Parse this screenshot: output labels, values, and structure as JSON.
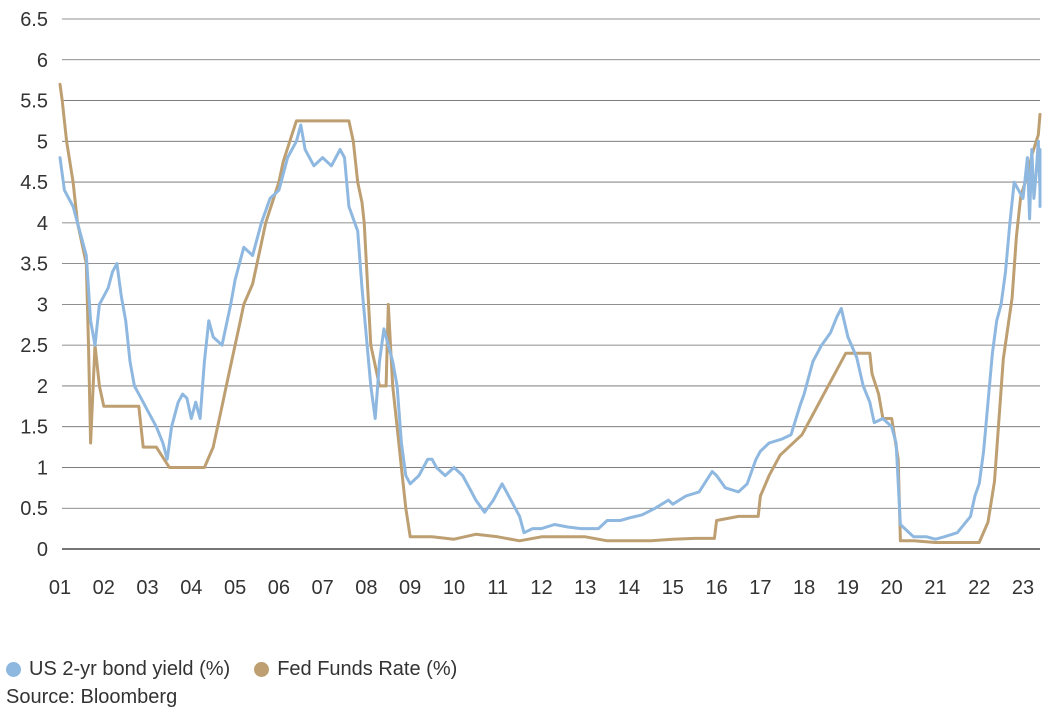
{
  "chart_data": {
    "type": "line",
    "title": "",
    "xlabel": "",
    "ylabel": "",
    "x_tick_labels": [
      "01",
      "02",
      "03",
      "04",
      "05",
      "06",
      "07",
      "08",
      "09",
      "10",
      "11",
      "12",
      "13",
      "14",
      "15",
      "16",
      "17",
      "18",
      "19",
      "20",
      "21",
      "22",
      "23"
    ],
    "y_tick_labels": [
      "0",
      "0.5",
      "1",
      "1.5",
      "2",
      "2.5",
      "3",
      "3.5",
      "4",
      "4.5",
      "5",
      "5.5",
      "6",
      "6.5"
    ],
    "xlim": [
      2001.0,
      2023.4
    ],
    "ylim": [
      0,
      6.5
    ],
    "grid": "horizontal",
    "legend_position": "bottom-left",
    "series": [
      {
        "name": "US 2-yr bond yield (%)",
        "color": "#8fb8e0",
        "points": [
          [
            2001.0,
            4.8
          ],
          [
            2001.1,
            4.4
          ],
          [
            2001.3,
            4.2
          ],
          [
            2001.5,
            3.8
          ],
          [
            2001.6,
            3.6
          ],
          [
            2001.7,
            2.8
          ],
          [
            2001.8,
            2.5
          ],
          [
            2001.9,
            3.0
          ],
          [
            2002.0,
            3.1
          ],
          [
            2002.1,
            3.2
          ],
          [
            2002.2,
            3.4
          ],
          [
            2002.3,
            3.5
          ],
          [
            2002.4,
            3.1
          ],
          [
            2002.5,
            2.8
          ],
          [
            2002.6,
            2.3
          ],
          [
            2002.7,
            2.0
          ],
          [
            2002.8,
            1.9
          ],
          [
            2002.9,
            1.8
          ],
          [
            2003.0,
            1.7
          ],
          [
            2003.2,
            1.5
          ],
          [
            2003.35,
            1.3
          ],
          [
            2003.45,
            1.1
          ],
          [
            2003.55,
            1.5
          ],
          [
            2003.7,
            1.8
          ],
          [
            2003.8,
            1.9
          ],
          [
            2003.9,
            1.85
          ],
          [
            2004.0,
            1.6
          ],
          [
            2004.1,
            1.8
          ],
          [
            2004.2,
            1.6
          ],
          [
            2004.3,
            2.3
          ],
          [
            2004.4,
            2.8
          ],
          [
            2004.5,
            2.6
          ],
          [
            2004.7,
            2.5
          ],
          [
            2004.9,
            3.0
          ],
          [
            2005.0,
            3.3
          ],
          [
            2005.2,
            3.7
          ],
          [
            2005.4,
            3.6
          ],
          [
            2005.6,
            4.0
          ],
          [
            2005.8,
            4.3
          ],
          [
            2006.0,
            4.4
          ],
          [
            2006.2,
            4.8
          ],
          [
            2006.4,
            5.0
          ],
          [
            2006.5,
            5.2
          ],
          [
            2006.6,
            4.9
          ],
          [
            2006.8,
            4.7
          ],
          [
            2007.0,
            4.8
          ],
          [
            2007.2,
            4.7
          ],
          [
            2007.4,
            4.9
          ],
          [
            2007.5,
            4.8
          ],
          [
            2007.6,
            4.2
          ],
          [
            2007.8,
            3.9
          ],
          [
            2007.9,
            3.2
          ],
          [
            2008.0,
            2.6
          ],
          [
            2008.1,
            2.0
          ],
          [
            2008.2,
            1.6
          ],
          [
            2008.3,
            2.3
          ],
          [
            2008.4,
            2.7
          ],
          [
            2008.5,
            2.5
          ],
          [
            2008.6,
            2.3
          ],
          [
            2008.7,
            2.0
          ],
          [
            2008.8,
            1.3
          ],
          [
            2008.9,
            0.9
          ],
          [
            2009.0,
            0.8
          ],
          [
            2009.2,
            0.9
          ],
          [
            2009.4,
            1.1
          ],
          [
            2009.5,
            1.1
          ],
          [
            2009.6,
            1.0
          ],
          [
            2009.8,
            0.9
          ],
          [
            2010.0,
            1.0
          ],
          [
            2010.2,
            0.9
          ],
          [
            2010.4,
            0.7
          ],
          [
            2010.5,
            0.6
          ],
          [
            2010.7,
            0.45
          ],
          [
            2010.9,
            0.6
          ],
          [
            2011.0,
            0.7
          ],
          [
            2011.1,
            0.8
          ],
          [
            2011.2,
            0.7
          ],
          [
            2011.4,
            0.5
          ],
          [
            2011.5,
            0.4
          ],
          [
            2011.6,
            0.2
          ],
          [
            2011.8,
            0.25
          ],
          [
            2012.0,
            0.25
          ],
          [
            2012.3,
            0.3
          ],
          [
            2012.6,
            0.27
          ],
          [
            2012.9,
            0.25
          ],
          [
            2013.0,
            0.25
          ],
          [
            2013.3,
            0.25
          ],
          [
            2013.5,
            0.35
          ],
          [
            2013.8,
            0.35
          ],
          [
            2014.0,
            0.38
          ],
          [
            2014.3,
            0.42
          ],
          [
            2014.6,
            0.5
          ],
          [
            2014.9,
            0.6
          ],
          [
            2015.0,
            0.55
          ],
          [
            2015.3,
            0.65
          ],
          [
            2015.6,
            0.7
          ],
          [
            2015.9,
            0.95
          ],
          [
            2016.0,
            0.9
          ],
          [
            2016.2,
            0.75
          ],
          [
            2016.5,
            0.7
          ],
          [
            2016.7,
            0.8
          ],
          [
            2016.9,
            1.1
          ],
          [
            2017.0,
            1.2
          ],
          [
            2017.2,
            1.3
          ],
          [
            2017.5,
            1.35
          ],
          [
            2017.7,
            1.4
          ],
          [
            2017.9,
            1.75
          ],
          [
            2018.0,
            1.9
          ],
          [
            2018.2,
            2.3
          ],
          [
            2018.4,
            2.5
          ],
          [
            2018.6,
            2.65
          ],
          [
            2018.75,
            2.85
          ],
          [
            2018.85,
            2.95
          ],
          [
            2019.0,
            2.6
          ],
          [
            2019.2,
            2.35
          ],
          [
            2019.35,
            2.0
          ],
          [
            2019.5,
            1.8
          ],
          [
            2019.6,
            1.55
          ],
          [
            2019.8,
            1.6
          ],
          [
            2019.9,
            1.55
          ],
          [
            2020.0,
            1.5
          ],
          [
            2020.1,
            1.3
          ],
          [
            2020.2,
            0.3
          ],
          [
            2020.3,
            0.25
          ],
          [
            2020.5,
            0.15
          ],
          [
            2020.8,
            0.15
          ],
          [
            2021.0,
            0.12
          ],
          [
            2021.2,
            0.15
          ],
          [
            2021.5,
            0.2
          ],
          [
            2021.8,
            0.4
          ],
          [
            2021.9,
            0.65
          ],
          [
            2022.0,
            0.8
          ],
          [
            2022.1,
            1.2
          ],
          [
            2022.2,
            1.8
          ],
          [
            2022.3,
            2.4
          ],
          [
            2022.4,
            2.8
          ],
          [
            2022.5,
            3.0
          ],
          [
            2022.6,
            3.4
          ],
          [
            2022.7,
            4.0
          ],
          [
            2022.8,
            4.5
          ],
          [
            2022.9,
            4.4
          ],
          [
            2023.0,
            4.3
          ],
          [
            2023.1,
            4.8
          ],
          [
            2023.15,
            4.05
          ],
          [
            2023.2,
            4.9
          ],
          [
            2023.25,
            4.3
          ],
          [
            2023.3,
            4.6
          ],
          [
            2023.35,
            5.0
          ],
          [
            2023.4,
            4.4
          ],
          [
            2023.45,
            4.2
          ],
          [
            2023.5,
            4.5
          ],
          [
            2023.6,
            4.75
          ],
          [
            2023.75,
            4.9
          ],
          [
            2023.85,
            4.8
          ],
          [
            2023.95,
            4.5
          ],
          [
            2024.05,
            4.3
          ],
          [
            2024.15,
            4.45
          ]
        ]
      },
      {
        "name": "Fed Funds Rate (%)",
        "color": "#bd9f72",
        "points": [
          [
            2001.0,
            5.7
          ],
          [
            2001.05,
            5.5
          ],
          [
            2001.15,
            5.0
          ],
          [
            2001.3,
            4.5
          ],
          [
            2001.4,
            4.0
          ],
          [
            2001.5,
            3.75
          ],
          [
            2001.6,
            3.5
          ],
          [
            2001.65,
            2.5
          ],
          [
            2001.7,
            1.3
          ],
          [
            2001.8,
            2.5
          ],
          [
            2001.9,
            2.0
          ],
          [
            2002.0,
            1.75
          ],
          [
            2002.2,
            1.75
          ],
          [
            2002.5,
            1.75
          ],
          [
            2002.8,
            1.75
          ],
          [
            2002.9,
            1.25
          ],
          [
            2003.0,
            1.25
          ],
          [
            2003.2,
            1.25
          ],
          [
            2003.5,
            1.0
          ],
          [
            2003.8,
            1.0
          ],
          [
            2004.0,
            1.0
          ],
          [
            2004.3,
            1.0
          ],
          [
            2004.5,
            1.25
          ],
          [
            2004.6,
            1.5
          ],
          [
            2004.7,
            1.75
          ],
          [
            2004.8,
            2.0
          ],
          [
            2004.9,
            2.25
          ],
          [
            2005.0,
            2.5
          ],
          [
            2005.1,
            2.75
          ],
          [
            2005.2,
            3.0
          ],
          [
            2005.4,
            3.25
          ],
          [
            2005.5,
            3.5
          ],
          [
            2005.6,
            3.75
          ],
          [
            2005.7,
            4.0
          ],
          [
            2005.85,
            4.25
          ],
          [
            2006.0,
            4.5
          ],
          [
            2006.1,
            4.75
          ],
          [
            2006.25,
            5.0
          ],
          [
            2006.4,
            5.25
          ],
          [
            2006.6,
            5.25
          ],
          [
            2007.0,
            5.25
          ],
          [
            2007.3,
            5.25
          ],
          [
            2007.6,
            5.25
          ],
          [
            2007.7,
            5.0
          ],
          [
            2007.75,
            4.75
          ],
          [
            2007.8,
            4.5
          ],
          [
            2007.9,
            4.25
          ],
          [
            2007.95,
            4.0
          ],
          [
            2008.0,
            3.5
          ],
          [
            2008.05,
            3.0
          ],
          [
            2008.1,
            2.5
          ],
          [
            2008.2,
            2.25
          ],
          [
            2008.3,
            2.0
          ],
          [
            2008.45,
            2.0
          ],
          [
            2008.5,
            3.0
          ],
          [
            2008.6,
            2.0
          ],
          [
            2008.7,
            1.5
          ],
          [
            2008.8,
            1.0
          ],
          [
            2008.9,
            0.5
          ],
          [
            2009.0,
            0.15
          ],
          [
            2009.5,
            0.15
          ],
          [
            2010.0,
            0.12
          ],
          [
            2010.5,
            0.18
          ],
          [
            2011.0,
            0.15
          ],
          [
            2011.5,
            0.1
          ],
          [
            2012.0,
            0.15
          ],
          [
            2012.5,
            0.15
          ],
          [
            2013.0,
            0.15
          ],
          [
            2013.5,
            0.1
          ],
          [
            2014.0,
            0.1
          ],
          [
            2014.5,
            0.1
          ],
          [
            2015.0,
            0.12
          ],
          [
            2015.5,
            0.13
          ],
          [
            2015.95,
            0.13
          ],
          [
            2016.0,
            0.35
          ],
          [
            2016.5,
            0.4
          ],
          [
            2016.95,
            0.4
          ],
          [
            2017.0,
            0.65
          ],
          [
            2017.2,
            0.9
          ],
          [
            2017.45,
            1.15
          ],
          [
            2017.95,
            1.4
          ],
          [
            2018.2,
            1.65
          ],
          [
            2018.45,
            1.9
          ],
          [
            2018.7,
            2.15
          ],
          [
            2018.95,
            2.4
          ],
          [
            2019.5,
            2.4
          ],
          [
            2019.55,
            2.15
          ],
          [
            2019.7,
            1.9
          ],
          [
            2019.8,
            1.6
          ],
          [
            2020.0,
            1.6
          ],
          [
            2020.15,
            1.1
          ],
          [
            2020.2,
            0.1
          ],
          [
            2020.5,
            0.1
          ],
          [
            2021.0,
            0.08
          ],
          [
            2021.5,
            0.08
          ],
          [
            2022.0,
            0.08
          ],
          [
            2022.2,
            0.33
          ],
          [
            2022.35,
            0.83
          ],
          [
            2022.45,
            1.58
          ],
          [
            2022.55,
            2.33
          ],
          [
            2022.75,
            3.08
          ],
          [
            2022.85,
            3.83
          ],
          [
            2022.95,
            4.33
          ],
          [
            2023.1,
            4.58
          ],
          [
            2023.2,
            4.83
          ],
          [
            2023.35,
            5.08
          ],
          [
            2023.55,
            5.33
          ],
          [
            2024.15,
            5.33
          ]
        ]
      }
    ]
  },
  "legend": {
    "items": [
      {
        "label": "US 2-yr bond yield (%)",
        "color": "#8fb8e0"
      },
      {
        "label": "Fed Funds Rate (%)",
        "color": "#bd9f72"
      }
    ]
  },
  "source": "Source: Bloomberg"
}
